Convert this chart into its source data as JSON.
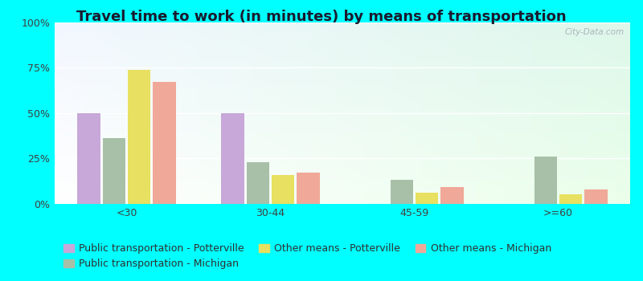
{
  "title": "Travel time to work (in minutes) by means of transportation",
  "categories": [
    "<30",
    "30-44",
    "45-59",
    ">=60"
  ],
  "series": {
    "Public transportation - Potterville": [
      50,
      50,
      0,
      0
    ],
    "Public transportation - Michigan": [
      36,
      23,
      13,
      26
    ],
    "Other means - Potterville": [
      74,
      16,
      6,
      5
    ],
    "Other means - Michigan": [
      67,
      17,
      9,
      8
    ]
  },
  "colors": {
    "Public transportation - Potterville": "#c8a8d8",
    "Public transportation - Michigan": "#a8c0a8",
    "Other means - Potterville": "#e8e060",
    "Other means - Michigan": "#f0a898"
  },
  "ylim": [
    0,
    100
  ],
  "yticks": [
    0,
    25,
    50,
    75,
    100
  ],
  "ytick_labels": [
    "0%",
    "25%",
    "50%",
    "75%",
    "100%"
  ],
  "outer_background": "#00ffff",
  "bar_width": 0.16,
  "title_fontsize": 13,
  "tick_fontsize": 9,
  "legend_fontsize": 9
}
